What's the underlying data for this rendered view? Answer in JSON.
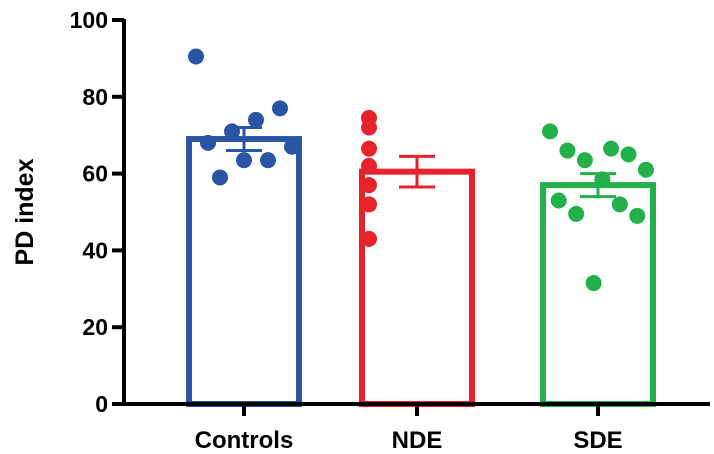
{
  "chart_data": {
    "type": "bar",
    "title": "",
    "xlabel": "",
    "ylabel": "PD index",
    "ylim": [
      0,
      100
    ],
    "yticks": [
      0,
      20,
      40,
      60,
      80,
      100
    ],
    "grid": false,
    "legend": "none",
    "categories": [
      "Controls",
      "NDE",
      "SDE"
    ],
    "colors": [
      "#2a55a5",
      "#e8222b",
      "#22b04b"
    ],
    "values": [
      69.0,
      60.5,
      57.0
    ],
    "sem": [
      3.0,
      4.0,
      3.0
    ],
    "points": [
      [
        90.5,
        77.0,
        74.0,
        71.0,
        68.0,
        67.0,
        63.5,
        63.5,
        59.0
      ],
      [
        74.5,
        72.0,
        66.5,
        62.0,
        57.0,
        52.0,
        43.0
      ],
      [
        71.0,
        66.5,
        66.0,
        65.0,
        63.5,
        61.0,
        58.5,
        53.0,
        52.0,
        49.5,
        49.0,
        31.5
      ]
    ]
  }
}
